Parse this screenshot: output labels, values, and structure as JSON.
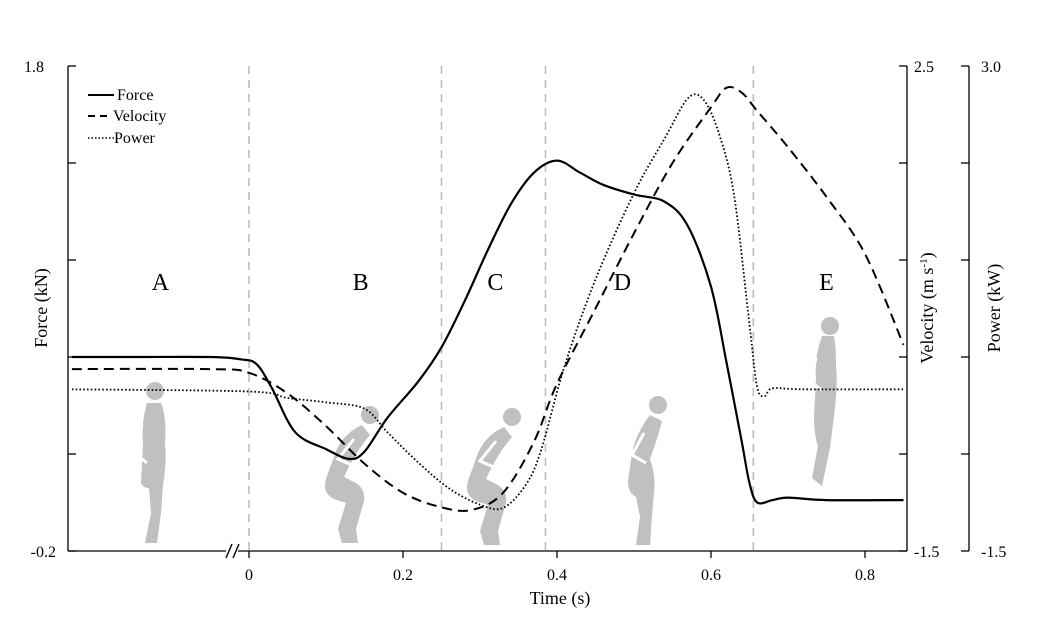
{
  "chart_data": {
    "type": "line",
    "xlabel": "Time (s)",
    "x_ticks": [
      "0",
      "0.2",
      "0.4",
      "0.6",
      "0.8"
    ],
    "x_range": [
      -0.23,
      0.85
    ],
    "x_axis_break": true,
    "grid": false,
    "legend_position": "top-left",
    "axes": {
      "force": {
        "label": "Force (kN)",
        "range": [
          -0.2,
          1.8
        ],
        "ticks": [
          "1.8",
          "-0.2"
        ],
        "side": "left"
      },
      "velocity": {
        "label": "Velocity (m s⁻¹)",
        "label_main": "Velocity (m s",
        "label_sup": "-1",
        "label_close": ")",
        "range": [
          -1.5,
          2.5
        ],
        "ticks": [
          "2.5",
          "-1.5"
        ],
        "side": "right"
      },
      "power": {
        "label": "Power (kW)",
        "range": [
          -1.5,
          3.0
        ],
        "ticks": [
          "3.0",
          "-1.5"
        ],
        "side": "right-outer"
      }
    },
    "phase_boundaries": [
      0.0,
      0.25,
      0.385,
      0.655
    ],
    "phases": [
      {
        "label": "A",
        "x": -0.115
      },
      {
        "label": "B",
        "x": 0.145
      },
      {
        "label": "C",
        "x": 0.32
      },
      {
        "label": "D",
        "x": 0.485
      },
      {
        "label": "E",
        "x": 0.75
      }
    ],
    "series": [
      {
        "name": "Force",
        "axis": "force",
        "style": "solid",
        "points": [
          [
            -0.23,
            0.6
          ],
          [
            -0.15,
            0.6
          ],
          [
            -0.05,
            0.6
          ],
          [
            -0.01,
            0.59
          ],
          [
            0.01,
            0.57
          ],
          [
            0.03,
            0.47
          ],
          [
            0.06,
            0.29
          ],
          [
            0.1,
            0.22
          ],
          [
            0.13,
            0.18
          ],
          [
            0.15,
            0.21
          ],
          [
            0.18,
            0.35
          ],
          [
            0.22,
            0.5
          ],
          [
            0.25,
            0.64
          ],
          [
            0.28,
            0.83
          ],
          [
            0.31,
            1.04
          ],
          [
            0.34,
            1.23
          ],
          [
            0.37,
            1.36
          ],
          [
            0.4,
            1.41
          ],
          [
            0.43,
            1.36
          ],
          [
            0.46,
            1.31
          ],
          [
            0.5,
            1.27
          ],
          [
            0.54,
            1.24
          ],
          [
            0.57,
            1.14
          ],
          [
            0.6,
            0.89
          ],
          [
            0.62,
            0.58
          ],
          [
            0.64,
            0.25
          ],
          [
            0.65,
            0.08
          ],
          [
            0.66,
            0.0
          ],
          [
            0.68,
            0.01
          ],
          [
            0.7,
            0.02
          ],
          [
            0.75,
            0.01
          ],
          [
            0.85,
            0.01
          ]
        ]
      },
      {
        "name": "Velocity",
        "axis": "velocity",
        "style": "dashed",
        "points": [
          [
            -0.23,
            0.0
          ],
          [
            -0.05,
            0.0
          ],
          [
            0.0,
            -0.03
          ],
          [
            0.05,
            -0.2
          ],
          [
            0.1,
            -0.47
          ],
          [
            0.15,
            -0.78
          ],
          [
            0.2,
            -1.02
          ],
          [
            0.25,
            -1.14
          ],
          [
            0.29,
            -1.16
          ],
          [
            0.33,
            -1.02
          ],
          [
            0.37,
            -0.6
          ],
          [
            0.4,
            -0.12
          ],
          [
            0.45,
            0.5
          ],
          [
            0.5,
            1.12
          ],
          [
            0.55,
            1.7
          ],
          [
            0.6,
            2.16
          ],
          [
            0.62,
            2.32
          ],
          [
            0.64,
            2.28
          ],
          [
            0.66,
            2.13
          ],
          [
            0.7,
            1.83
          ],
          [
            0.75,
            1.42
          ],
          [
            0.8,
            0.95
          ],
          [
            0.85,
            0.2
          ]
        ]
      },
      {
        "name": "Power",
        "axis": "power",
        "style": "dotted",
        "points": [
          [
            -0.23,
            0.0
          ],
          [
            0.0,
            -0.02
          ],
          [
            0.05,
            -0.08
          ],
          [
            0.1,
            -0.12
          ],
          [
            0.15,
            -0.18
          ],
          [
            0.18,
            -0.4
          ],
          [
            0.22,
            -0.68
          ],
          [
            0.26,
            -0.92
          ],
          [
            0.3,
            -1.07
          ],
          [
            0.33,
            -1.1
          ],
          [
            0.36,
            -0.88
          ],
          [
            0.38,
            -0.55
          ],
          [
            0.41,
            0.22
          ],
          [
            0.45,
            1.02
          ],
          [
            0.5,
            1.82
          ],
          [
            0.54,
            2.33
          ],
          [
            0.57,
            2.7
          ],
          [
            0.59,
            2.69
          ],
          [
            0.61,
            2.38
          ],
          [
            0.63,
            1.8
          ],
          [
            0.65,
            0.6
          ],
          [
            0.66,
            0.02
          ],
          [
            0.67,
            -0.06
          ],
          [
            0.68,
            0.01
          ],
          [
            0.72,
            0.0
          ],
          [
            0.85,
            0.0
          ]
        ]
      }
    ]
  },
  "colors": {
    "axis": "#000000",
    "phase_line": "#bdbdbd",
    "figure": "#c0c0c0"
  },
  "icons": [
    "standing-figure-icon",
    "countermovement-figure-icon",
    "squat-figure-icon",
    "push-off-figure-icon",
    "flight-figure-icon"
  ]
}
